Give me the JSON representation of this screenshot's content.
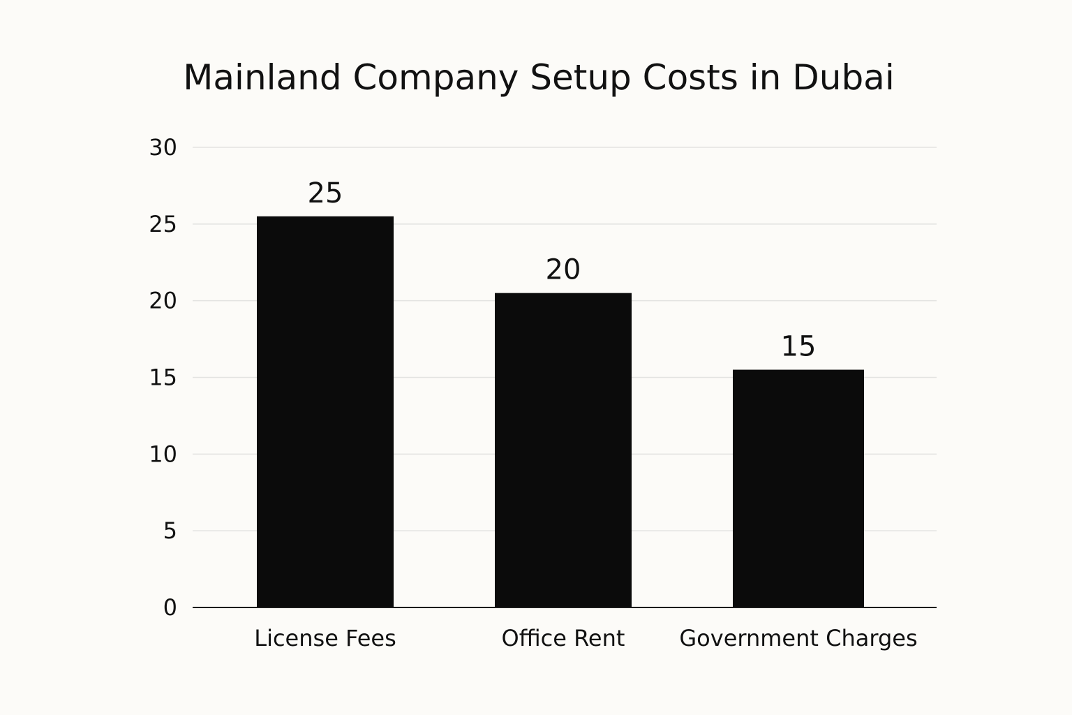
{
  "colors": {
    "background": "#fcfbf8",
    "bar": "#0b0b0b",
    "gridline": "#e3e3e1",
    "axis": "#1a1a1a",
    "text": "#111111"
  },
  "chart_data": {
    "type": "bar",
    "title": "Mainland Company Setup Costs in Dubai",
    "xlabel": "",
    "ylabel": "",
    "categories": [
      "License Fees",
      "Office Rent",
      "Government Charges"
    ],
    "values": [
      25,
      20,
      15
    ],
    "value_labels": [
      "25",
      "20",
      "15"
    ],
    "ylim": [
      0,
      30
    ],
    "yticks": [
      0,
      5,
      10,
      15,
      20,
      25,
      30
    ],
    "grid": true,
    "legend": "none"
  }
}
